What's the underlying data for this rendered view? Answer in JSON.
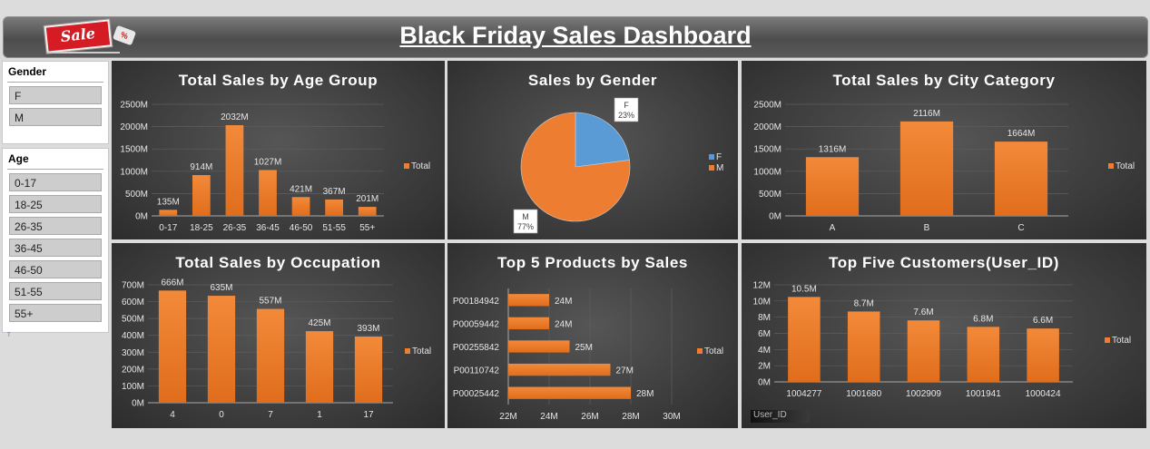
{
  "header": {
    "title": "Black Friday Sales Dashboard",
    "logo_text": "Sale",
    "logo_tag": "%"
  },
  "slicers": {
    "gender": {
      "title": "Gender",
      "items": [
        "F",
        "M"
      ]
    },
    "age": {
      "title": "Age",
      "items": [
        "0-17",
        "18-25",
        "26-35",
        "36-45",
        "46-50",
        "51-55",
        "55+"
      ]
    },
    "stray_text": "T"
  },
  "colors": {
    "series": "#ed7d31",
    "female": "#5b9bd5",
    "panel_bg": "#3f3f3f",
    "page_bg": "#dcdcdc"
  },
  "chart_data": [
    {
      "id": "age",
      "type": "bar",
      "title": "Total Sales by Age Group",
      "categories": [
        "0-17",
        "18-25",
        "26-35",
        "36-45",
        "46-50",
        "51-55",
        "55+"
      ],
      "values": [
        135,
        914,
        2032,
        1027,
        421,
        367,
        201
      ],
      "data_labels": [
        "135M",
        "914M",
        "2032M",
        "1027M",
        "421M",
        "367M",
        "201M"
      ],
      "yticks": [
        "0M",
        "500M",
        "1000M",
        "1500M",
        "2000M",
        "2500M"
      ],
      "ylim": [
        0,
        2500
      ],
      "legend": [
        "Total"
      ],
      "legend_position": "right",
      "grid": true
    },
    {
      "id": "gender",
      "type": "pie",
      "title": "Sales by Gender",
      "categories": [
        "F",
        "M"
      ],
      "values": [
        23,
        77
      ],
      "data_labels": [
        [
          "F",
          "23%"
        ],
        [
          "M",
          "77%"
        ]
      ],
      "legend": [
        "F",
        "M"
      ],
      "legend_position": "right"
    },
    {
      "id": "city",
      "type": "bar",
      "title": "Total Sales by City Category",
      "categories": [
        "A",
        "B",
        "C"
      ],
      "values": [
        1316,
        2116,
        1664
      ],
      "data_labels": [
        "1316M",
        "2116M",
        "1664M"
      ],
      "yticks": [
        "0M",
        "500M",
        "1000M",
        "1500M",
        "2000M",
        "2500M"
      ],
      "ylim": [
        0,
        2500
      ],
      "legend": [
        "Total"
      ],
      "legend_position": "right",
      "grid": true
    },
    {
      "id": "occupation",
      "type": "bar",
      "title": "Total Sales by Occupation",
      "categories": [
        "4",
        "0",
        "7",
        "1",
        "17"
      ],
      "values": [
        666,
        635,
        557,
        425,
        393
      ],
      "data_labels": [
        "666M",
        "635M",
        "557M",
        "425M",
        "393M"
      ],
      "yticks": [
        "0M",
        "100M",
        "200M",
        "300M",
        "400M",
        "500M",
        "600M",
        "700M"
      ],
      "ylim": [
        0,
        700
      ],
      "legend": [
        "Total"
      ],
      "legend_position": "right",
      "grid": true
    },
    {
      "id": "products",
      "type": "bar",
      "orientation": "horizontal",
      "title": "Top 5 Products by Sales",
      "categories": [
        "P00184942",
        "P00059442",
        "P00255842",
        "P00110742",
        "P00025442"
      ],
      "values": [
        24,
        24,
        25,
        27,
        28
      ],
      "data_labels": [
        "24M",
        "24M",
        "25M",
        "27M",
        "28M"
      ],
      "xticks": [
        "22M",
        "24M",
        "26M",
        "28M",
        "30M"
      ],
      "xlim": [
        22,
        30
      ],
      "legend": [
        "Total"
      ],
      "legend_position": "right",
      "grid": true
    },
    {
      "id": "customers",
      "type": "bar",
      "title": "Top Five Customers(User_ID)",
      "categories": [
        "1004277",
        "1001680",
        "1002909",
        "1001941",
        "1000424"
      ],
      "values": [
        10.5,
        8.7,
        7.6,
        6.8,
        6.6
      ],
      "data_labels": [
        "10.5M",
        "8.7M",
        "7.6M",
        "6.8M",
        "6.6M"
      ],
      "yticks": [
        "0M",
        "2M",
        "4M",
        "6M",
        "8M",
        "10M",
        "12M"
      ],
      "ylim": [
        0,
        12
      ],
      "legend": [
        "Total"
      ],
      "legend_position": "right",
      "grid": true,
      "field_button": "User_ID"
    }
  ]
}
